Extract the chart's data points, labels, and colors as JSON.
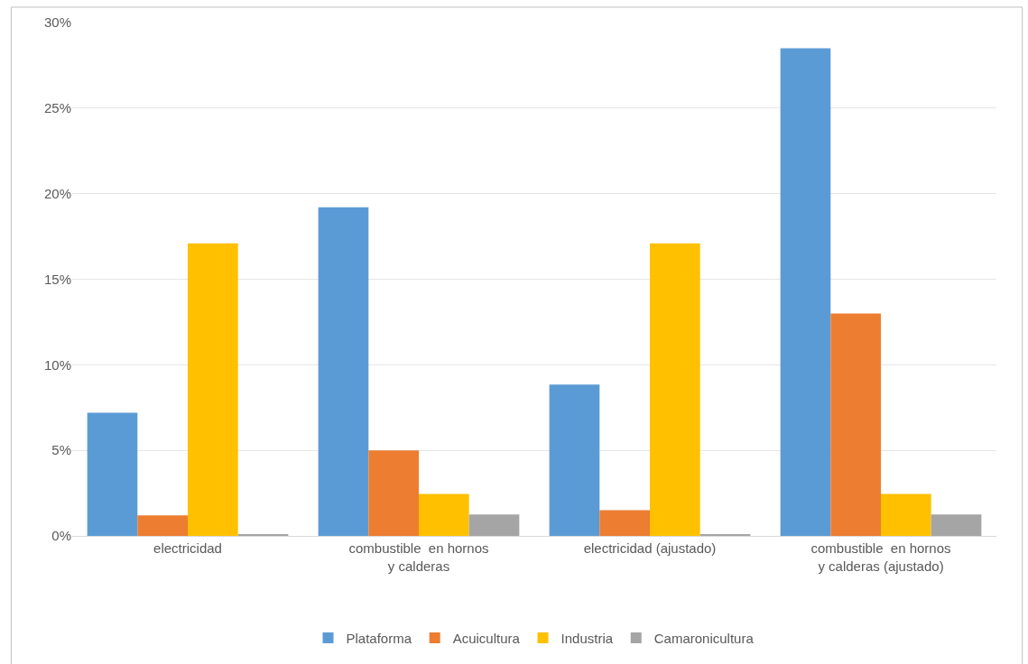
{
  "chart_data": {
    "type": "bar",
    "categories": [
      "electricidad",
      "combustible  en hornos\ny calderas",
      "electricidad (ajustado)",
      "combustible  en hornos\ny calderas (ajustado)"
    ],
    "series": [
      {
        "name": "Plataforma",
        "color": "#5b9bd5",
        "values": [
          7.2,
          19.2,
          8.85,
          28.5
        ]
      },
      {
        "name": "Acuicultura",
        "color": "#ed7d31",
        "values": [
          1.2,
          5.0,
          1.5,
          13.0
        ]
      },
      {
        "name": "Industria",
        "color": "#ffc000",
        "values": [
          17.1,
          2.45,
          17.1,
          2.45
        ]
      },
      {
        "name": "Camaronicultura",
        "color": "#a5a5a5",
        "values": [
          0.1,
          1.25,
          0.1,
          1.25
        ]
      }
    ],
    "ylim": [
      0,
      30
    ],
    "yticks": [
      {
        "value": 0,
        "label": "0%"
      },
      {
        "value": 5,
        "label": "5%"
      },
      {
        "value": 10,
        "label": "10%"
      },
      {
        "value": 15,
        "label": "15%"
      },
      {
        "value": 20,
        "label": "20%"
      },
      {
        "value": 25,
        "label": "25%"
      },
      {
        "value": 30,
        "label": "30%"
      }
    ],
    "grid": "y",
    "legend": "bottom"
  }
}
